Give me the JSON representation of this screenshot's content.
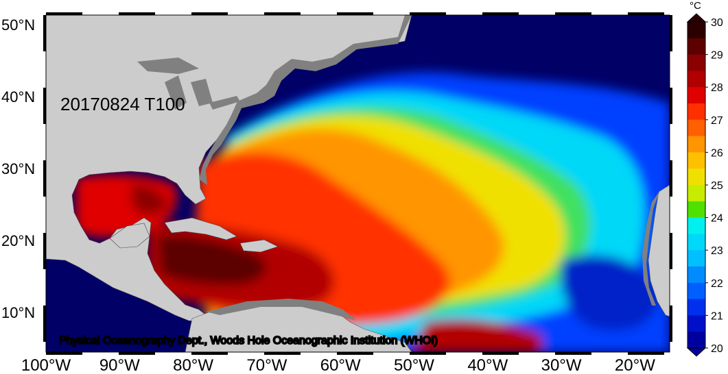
{
  "map": {
    "stamp": "20170824 T100",
    "credit": "Physical Oceanography Dept., Woods Hole Oceanographic Institution (WHOI)",
    "lat_labels": [
      "50°N",
      "40°N",
      "30°N",
      "20°N",
      "10°N"
    ],
    "lon_labels": [
      "100°W",
      "90°W",
      "80°W",
      "70°W",
      "60°W",
      "50°W",
      "40°W",
      "30°W",
      "20°W"
    ]
  },
  "colorbar": {
    "unit": "°C",
    "ticks": [
      "30",
      "29",
      "28",
      "27",
      "26",
      "25",
      "24",
      "23",
      "22",
      "21",
      "20"
    ],
    "colors": [
      "#2a0000",
      "#5c0000",
      "#8b0000",
      "#b20000",
      "#e00000",
      "#ff3000",
      "#ff6000",
      "#ff9500",
      "#ffc000",
      "#f0e000",
      "#c8ec00",
      "#50e000",
      "#00f0f0",
      "#00d8f8",
      "#00c0ff",
      "#008cff",
      "#0060ff",
      "#0030ee",
      "#0010c8",
      "#0000a0"
    ]
  },
  "palette": {
    "land_light": "#cccccc",
    "land_dark": "#808080",
    "ocean_cold": "#000066"
  }
}
